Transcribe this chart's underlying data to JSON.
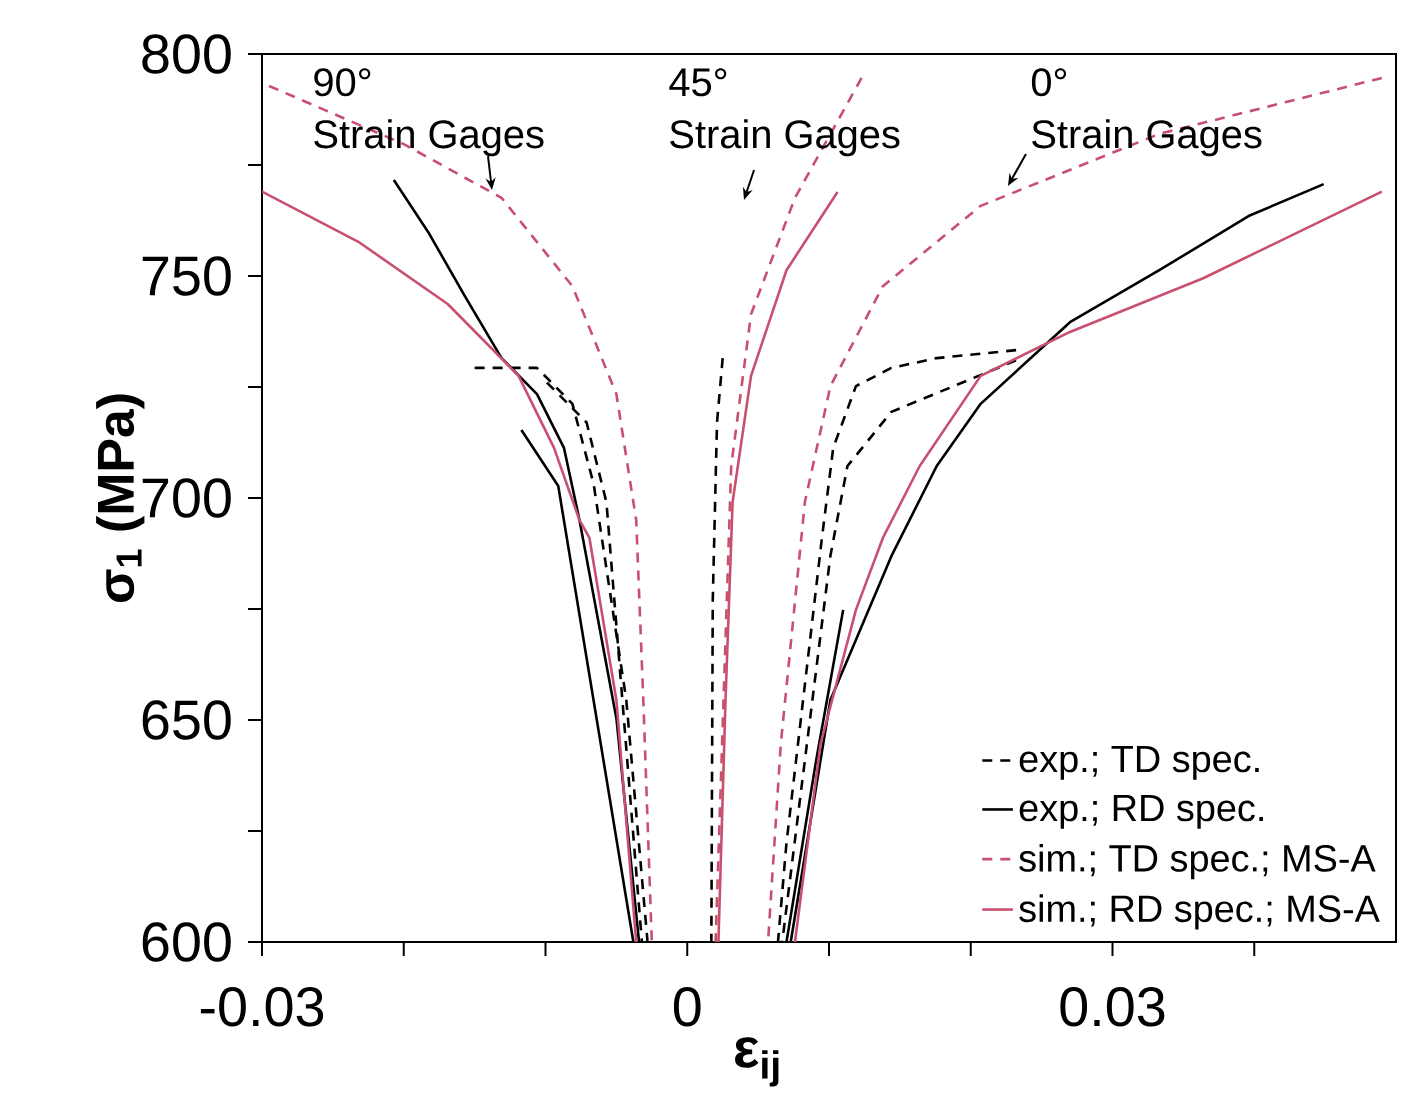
{
  "chart_data": {
    "type": "line",
    "xlabel": "ε$_{ij}$",
    "ylabel": "σ$_{1}$ (MPa)",
    "xlim": [
      -0.03,
      0.05
    ],
    "ylim": [
      600,
      800
    ],
    "xticks": [
      -0.03,
      {
        "value": -0.02,
        "label": null
      },
      {
        "value": -0.01,
        "label": null
      },
      0,
      {
        "value": 0.01,
        "label": null
      },
      {
        "value": 0.02,
        "label": null
      },
      0.03,
      {
        "value": 0.04,
        "label": null
      }
    ],
    "yticks": [
      600,
      {
        "value": 625,
        "label": null
      },
      650,
      {
        "value": 675,
        "label": null
      },
      700,
      {
        "value": 725,
        "label": null
      },
      750,
      {
        "value": 775,
        "label": null
      },
      800
    ],
    "grid": false,
    "legend": "bottom right",
    "series": [
      {
        "name": "exp.; TD spec.",
        "color": "#000000",
        "line_style": "dashed",
        "x": [
          -0.015,
          -0.0106,
          -0.0081,
          -0.0066,
          -0.0043,
          -0.0028
        ],
        "values": [
          729.3,
          729.3,
          721.2,
          703.1,
          654.5,
          600
        ]
      },
      {
        "color": "#000000",
        "line_style": "dashed",
        "x": [
          -0.0099,
          -0.0071,
          -0.0057,
          -0.0032
        ],
        "values": [
          726,
          717,
          699,
          600
        ]
      },
      {
        "color": "#000000",
        "line_style": "dashed",
        "x": [
          0.0025,
          0.0021,
          0.0018,
          0.0017
        ],
        "values": [
          731.5,
          717,
          677,
          600
        ]
      },
      {
        "color": "#000000",
        "line_style": "dashed",
        "x": [
          0.0232,
          0.0176,
          0.0144,
          0.0119,
          0.0103,
          0.0095,
          0.007,
          0.0064
        ],
        "values": [
          733.3,
          731.5,
          729.3,
          725.2,
          711.3,
          691,
          622.3,
          600
        ]
      },
      {
        "color": "#000000",
        "line_style": "dashed",
        "x": [
          0.0232,
          0.0144,
          0.0113,
          0.0101,
          0.0067
        ],
        "values": [
          731,
          719.4,
          707.2,
          687,
          600
        ]
      },
      {
        "name": "exp.; RD spec.",
        "color": "#000000",
        "line_style": "solid",
        "x": [
          -0.0207,
          -0.0182,
          -0.0157,
          -0.0131,
          -0.0106,
          -0.0087,
          -0.0076,
          -0.005,
          -0.0034
        ],
        "values": [
          771.6,
          759.5,
          745.5,
          731.5,
          723.4,
          711.3,
          695,
          650.4,
          600
        ]
      },
      {
        "color": "#000000",
        "line_style": "solid",
        "x": [
          -0.0117,
          -0.0091,
          -0.0038
        ],
        "values": [
          715.3,
          702.7,
          600
        ]
      },
      {
        "color": "#000000",
        "line_style": "solid",
        "x": [
          0.0449,
          0.0396,
          0.0333,
          0.027,
          0.0207,
          0.0176,
          0.0144,
          0.0101,
          0.0073
        ],
        "values": [
          770.7,
          763.5,
          751.3,
          739.6,
          721.2,
          707.2,
          686.9,
          654.5,
          600
        ]
      },
      {
        "color": "#000000",
        "line_style": "solid",
        "x": [
          0.011,
          0.0091,
          0.007
        ],
        "values": [
          674.8,
          641,
          600
        ]
      },
      {
        "name": "sim.; TD spec.; MS-A",
        "color": "#c8506e",
        "line_style": "dashed",
        "x": [
          -0.0295,
          -0.02,
          -0.0131,
          -0.0081,
          -0.005,
          -0.0036,
          -0.0031,
          -0.0025
        ],
        "values": [
          792.8,
          779.7,
          767.6,
          747.7,
          723.4,
          695,
          654.5,
          600
        ]
      },
      {
        "color": "#c8506e",
        "line_style": "dashed",
        "x": [
          0.0123,
          0.0076,
          0.0045,
          0.0031,
          0.002
        ],
        "values": [
          794.6,
          767.6,
          741.4,
          707.2,
          600
        ]
      },
      {
        "color": "#c8506e",
        "line_style": "dashed",
        "x": [
          0.049,
          0.0333,
          0.0207,
          0.0138,
          0.0101,
          0.0083,
          0.0066,
          0.0057
        ],
        "values": [
          794.6,
          782,
          765.8,
          747.7,
          725.2,
          699.1,
          644.6,
          600
        ]
      },
      {
        "name": "sim.; RD spec.; MS-A",
        "color": "#c8506e",
        "line_style": "solid",
        "x": [
          -0.03,
          -0.0232,
          -0.0169,
          -0.0119,
          -0.0094,
          -0.0076,
          -0.0069,
          -0.005,
          -0.0036
        ],
        "values": [
          769,
          757.7,
          743.7,
          727.5,
          711.3,
          695,
          691,
          654.5,
          600
        ]
      },
      {
        "color": "#c8506e",
        "line_style": "solid",
        "x": [
          0.0106,
          0.007,
          0.0045,
          0.0032,
          0.0027,
          0.0022
        ],
        "values": [
          768.9,
          751.3,
          727.5,
          699.1,
          654.5,
          600
        ]
      },
      {
        "color": "#c8506e",
        "line_style": "solid",
        "x": [
          0.049,
          0.0364,
          0.027,
          0.0207,
          0.0164,
          0.0138,
          0.0119,
          0.0094,
          0.0076
        ],
        "values": [
          769,
          749.5,
          737.4,
          727.5,
          707.2,
          691,
          674.8,
          644.6,
          600
        ]
      }
    ],
    "annotations": [
      "90°",
      "Strain Gages",
      "45°",
      "Strain Gages",
      "0°",
      "Strain Gages"
    ]
  }
}
